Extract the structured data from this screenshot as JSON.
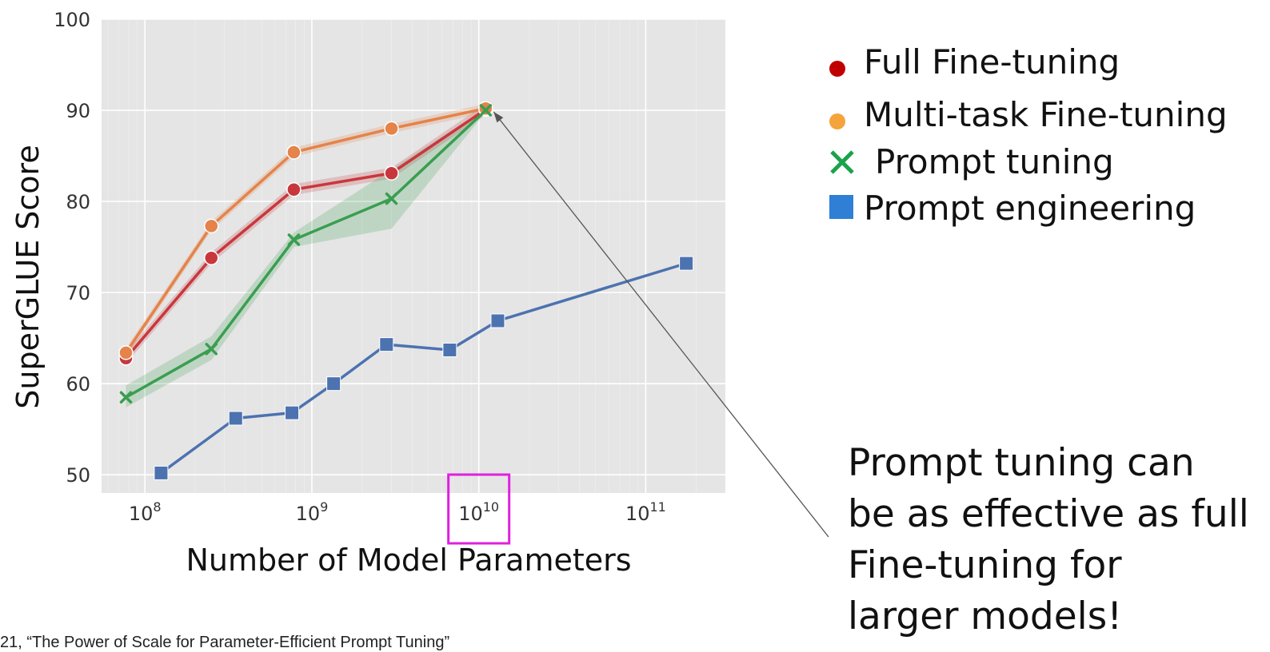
{
  "chart_data": {
    "type": "line",
    "xscale": "log",
    "xlim": [
      55000000.0,
      300000000000.0
    ],
    "ylim": [
      48,
      100
    ],
    "xlabel": "Number of Model Parameters",
    "ylabel": "SuperGLUE Score",
    "yticks": [
      50,
      60,
      70,
      80,
      90,
      100
    ],
    "xticks": [
      {
        "value": 100000000.0,
        "base": "10",
        "exp": "8"
      },
      {
        "value": 1000000000.0,
        "base": "10",
        "exp": "9"
      },
      {
        "value": 10000000000.0,
        "base": "10",
        "exp": "10"
      },
      {
        "value": 100000000000.0,
        "base": "10",
        "exp": "11"
      }
    ],
    "grid": true,
    "legend_position": "right",
    "series": [
      {
        "name": "Full Fine-tuning",
        "marker": "circle",
        "color": "#c8373c",
        "legend_color": "#c00000",
        "x": [
          77000000.0,
          250000000.0,
          780000000.0,
          3000000000.0,
          11000000000.0
        ],
        "y": [
          62.8,
          73.8,
          81.3,
          83.1,
          90.1
        ],
        "band": 0.6
      },
      {
        "name": "Multi-task Fine-tuning",
        "marker": "circle",
        "color": "#e4834a",
        "legend_color": "#f5a33b",
        "x": [
          77000000.0,
          250000000.0,
          780000000.0,
          3000000000.0,
          11000000000.0
        ],
        "y": [
          63.4,
          77.3,
          85.4,
          88.0,
          90.2
        ],
        "band": 0.5
      },
      {
        "name": "Prompt tuning",
        "marker": "x",
        "color": "#3a9e50",
        "legend_color": "#1aa34a",
        "x": [
          77000000.0,
          250000000.0,
          780000000.0,
          3000000000.0,
          11000000000.0
        ],
        "y": [
          58.5,
          63.8,
          75.8,
          80.3,
          90.0
        ],
        "band_lower": [
          57.4,
          62.6,
          75.0,
          77.0,
          89.8
        ],
        "band_upper": [
          59.8,
          65.2,
          76.6,
          83.5,
          90.2
        ]
      },
      {
        "name": "Prompt engineering",
        "marker": "square",
        "color": "#4c72b0",
        "legend_color": "#2f7fd6",
        "x": [
          125000000.0,
          350000000.0,
          760000000.0,
          1350000000.0,
          2800000000.0,
          6700000000.0,
          13000000000.0,
          175000000000.0
        ],
        "y": [
          50.2,
          56.2,
          56.8,
          60.0,
          64.3,
          63.7,
          66.9,
          73.2
        ]
      }
    ],
    "highlight_tick": "1e10",
    "highlight_color": "#e020e0",
    "annotation_arrow": {
      "to": {
        "x": 11000000000.0,
        "y": 90.0
      }
    }
  },
  "callout": {
    "lines": [
      "Prompt tuning can",
      "be as effective as full",
      "Fine-tuning for",
      "larger models!"
    ]
  },
  "citation": "21, “The Power of Scale for Parameter-Efficient Prompt Tuning”"
}
